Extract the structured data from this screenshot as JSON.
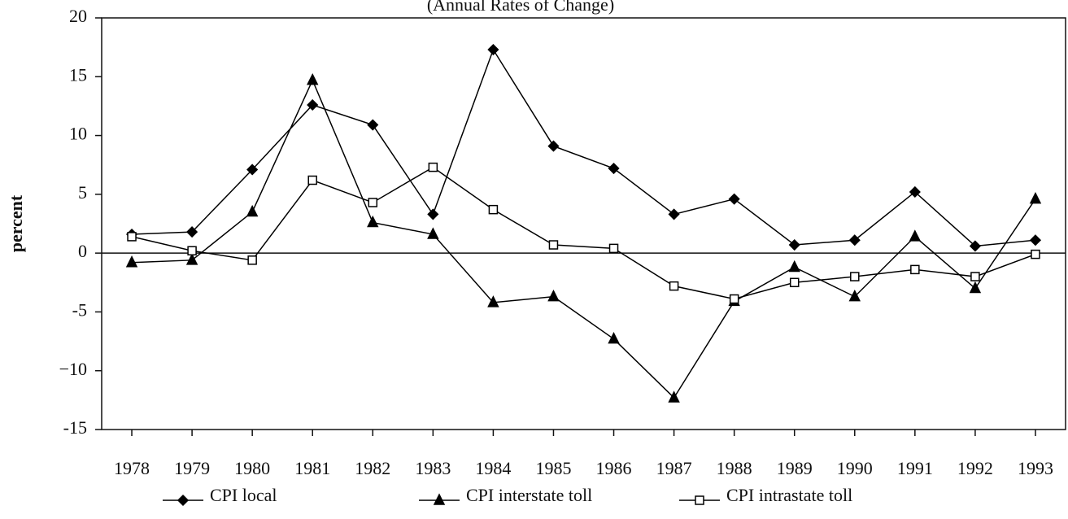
{
  "chart_data": {
    "type": "line",
    "subtitle": "(Annual Rates of Change)",
    "ylabel": "percent",
    "categories": [
      "1978",
      "1979",
      "1980",
      "1981",
      "1982",
      "1983",
      "1984",
      "1985",
      "1986",
      "1987",
      "1988",
      "1989",
      "1990",
      "1991",
      "1992",
      "1993"
    ],
    "series": [
      {
        "name": "CPI local",
        "color": "#000000",
        "marker": "diamond",
        "values": [
          1.6,
          1.8,
          7.1,
          12.6,
          10.9,
          3.3,
          17.3,
          9.1,
          7.2,
          3.3,
          4.6,
          0.7,
          1.1,
          5.2,
          0.6,
          1.1
        ]
      },
      {
        "name": "CPI interstate toll",
        "color": "#000000",
        "marker": "triangle",
        "values": [
          -0.8,
          -0.6,
          3.5,
          14.7,
          2.6,
          1.6,
          -4.2,
          -3.7,
          -7.3,
          -12.3,
          -4.1,
          -1.2,
          -3.7,
          1.4,
          -3.0,
          4.6
        ]
      },
      {
        "name": "CPI intrastate toll",
        "color": "#000000",
        "marker": "square",
        "values": [
          1.4,
          0.2,
          -0.6,
          6.2,
          4.3,
          7.3,
          3.7,
          0.7,
          0.4,
          -2.8,
          -3.9,
          -2.5,
          -2.0,
          -1.4,
          -2.0,
          -0.1
        ]
      }
    ],
    "ylim": [
      -15,
      20
    ],
    "yticks": [
      -15,
      {
        "value": -10,
        "label": "−10"
      },
      -5,
      0,
      5,
      10,
      15,
      20
    ],
    "zero_line": true
  }
}
